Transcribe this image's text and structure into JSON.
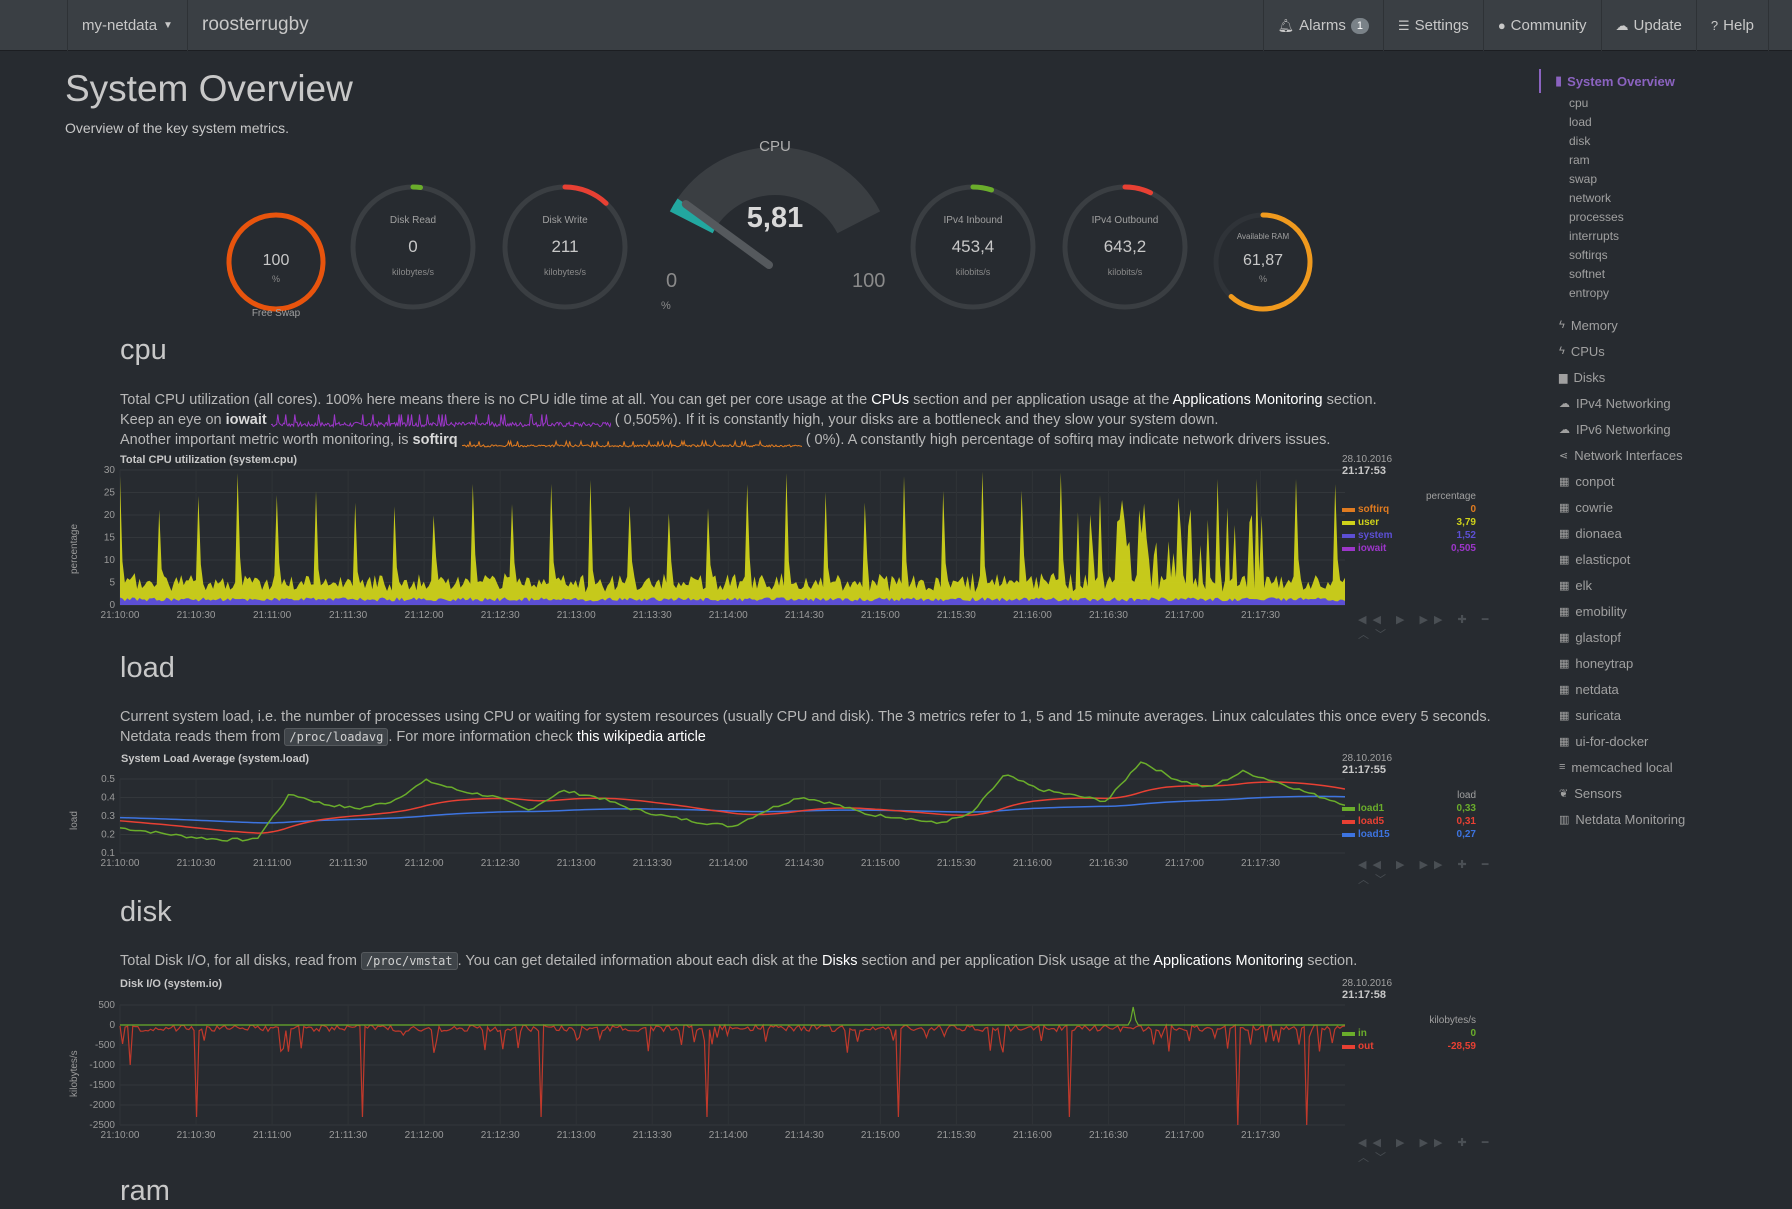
{
  "topbar": {
    "dashboard": "my-netdata",
    "hostname": "roosterrugby",
    "alarms_label": "Alarms",
    "alarms_count": "1",
    "settings_label": "Settings",
    "community_label": "Community",
    "update_label": "Update",
    "help_label": "Help"
  },
  "header": {
    "title": "System Overview",
    "subtitle": "Overview of the key system metrics."
  },
  "gauges": {
    "swap": {
      "label": "Free Swap",
      "value": "100",
      "unit": "%",
      "fraction": 1.0,
      "color": "#e8540d"
    },
    "disk_read": {
      "label": "Disk Read",
      "value": "0",
      "unit": "kilobytes/s",
      "fraction": 0.01,
      "color": "#6aad2b"
    },
    "disk_write": {
      "label": "Disk Write",
      "value": "211",
      "unit": "kilobytes/s",
      "fraction": 0.12,
      "color": "#e84033"
    },
    "cpu": {
      "label": "CPU",
      "value": "5,81",
      "min": "0",
      "max": "100",
      "unit": "%",
      "fraction": 0.0581,
      "color": "#22a8a0"
    },
    "ipv4_in": {
      "label": "IPv4 Inbound",
      "value": "453,4",
      "unit": "kilobits/s",
      "fraction": 0.05,
      "color": "#6aad2b"
    },
    "ipv4_out": {
      "label": "IPv4 Outbound",
      "value": "643,2",
      "unit": "kilobits/s",
      "fraction": 0.07,
      "color": "#e84033"
    },
    "ram": {
      "label": "Available RAM",
      "value": "61,87",
      "unit": "%",
      "fraction": 0.6187,
      "color": "#f09a1e"
    }
  },
  "sections": {
    "cpu": {
      "title": "cpu",
      "line1_a": "Total CPU utilization (all cores). 100% here means there is no CPU idle time at all. You can get per core usage at the ",
      "line1_link1": "CPUs",
      "line1_b": " section and per application usage at the ",
      "line1_link2": "Applications Monitoring",
      "line1_c": " section.",
      "line2_a": "Keep an eye on ",
      "line2_b": "iowait",
      "line2_c": "(     0,505%). If it is constantly high, your disks are a bottleneck and they slow your system down.",
      "line3_a": "Another important metric worth monitoring, is ",
      "line3_b": "softirq",
      "line3_c": "(          0%). A constantly high percentage of softirq may indicate network drivers issues.",
      "chart_title": "Total CPU utilization (system.cpu)",
      "ylabel": "percentage",
      "date": "28.10.2016",
      "time": "21:17:53",
      "units": "percentage"
    },
    "load": {
      "title": "load",
      "line1": "Current system load, i.e. the number of processes using CPU or waiting for system resources (usually CPU and disk). The 3 metrics refer to 1, 5 and 15 minute averages. Linux calculates this once every 5 seconds.",
      "line2_a": "Netdata reads them from ",
      "line2_code": "/proc/loadavg",
      "line2_b": ". For more information check ",
      "line2_link": "this wikipedia article",
      "chart_title": "System Load Average (system.load)",
      "ylabel": "load",
      "date": "28.10.2016",
      "time": "21:17:55",
      "units": "load"
    },
    "disk": {
      "title": "disk",
      "line1_a": "Total Disk I/O, for all disks, read from ",
      "line1_code": "/proc/vmstat",
      "line1_b": ". You can get detailed information about each disk at the ",
      "line1_link1": "Disks",
      "line1_c": " section and per application Disk usage at the ",
      "line1_link2": "Applications Monitoring",
      "line1_d": " section.",
      "chart_title": "Disk I/O (system.io)",
      "ylabel": "kilobytes/s",
      "date": "28.10.2016",
      "time": "21:17:58",
      "units": "kilobytes/s"
    },
    "ram": {
      "title": "ram"
    }
  },
  "chart_data": [
    {
      "type": "area",
      "title": "Total CPU utilization (system.cpu)",
      "ylabel": "percentage",
      "ylim": [
        0,
        30
      ],
      "yticks": [
        "0",
        "5",
        "10",
        "15",
        "20",
        "25",
        "30"
      ],
      "xticks": [
        "21:10:00",
        "21:10:30",
        "21:11:00",
        "21:11:30",
        "21:12:00",
        "21:12:30",
        "21:13:00",
        "21:13:30",
        "21:14:00",
        "21:14:30",
        "21:15:00",
        "21:15:30",
        "21:16:00",
        "21:16:30",
        "21:17:00",
        "21:17:30"
      ],
      "series": [
        {
          "name": "softirq",
          "value": "0",
          "color": "#e07b20"
        },
        {
          "name": "user",
          "value": "3,79",
          "color": "#cfd21a"
        },
        {
          "name": "system",
          "value": "1,52",
          "color": "#5c4fd4"
        },
        {
          "name": "iowait",
          "value": "0,505",
          "color": "#9c36c9"
        }
      ]
    },
    {
      "type": "line",
      "title": "System Load Average (system.load)",
      "ylabel": "load",
      "ylim": [
        0.1,
        0.5
      ],
      "yticks": [
        "0.1",
        "0.2",
        "0.3",
        "0.4",
        "0.5"
      ],
      "xticks": [
        "21:10:00",
        "21:10:30",
        "21:11:00",
        "21:11:30",
        "21:12:00",
        "21:12:30",
        "21:13:00",
        "21:13:30",
        "21:14:00",
        "21:14:30",
        "21:15:00",
        "21:15:30",
        "21:16:00",
        "21:16:30",
        "21:17:00",
        "21:17:30"
      ],
      "series": [
        {
          "name": "load1",
          "value": "0,33",
          "color": "#6aad2b"
        },
        {
          "name": "load5",
          "value": "0,31",
          "color": "#e84033"
        },
        {
          "name": "load15",
          "value": "0,27",
          "color": "#3d74e0"
        }
      ]
    },
    {
      "type": "line",
      "title": "Disk I/O (system.io)",
      "ylabel": "kilobytes/s",
      "ylim": [
        -2500,
        500
      ],
      "yticks": [
        "500",
        "0",
        "-500",
        "-1000",
        "-1500",
        "-2000",
        "-2500"
      ],
      "xticks": [
        "21:10:00",
        "21:10:30",
        "21:11:00",
        "21:11:30",
        "21:12:00",
        "21:12:30",
        "21:13:00",
        "21:13:30",
        "21:14:00",
        "21:14:30",
        "21:15:00",
        "21:15:30",
        "21:16:00",
        "21:16:30",
        "21:17:00",
        "21:17:30"
      ],
      "series": [
        {
          "name": "in",
          "value": "0",
          "color": "#6aad2b"
        },
        {
          "name": "out",
          "value": "-28,59",
          "color": "#e84033"
        }
      ]
    }
  ],
  "sidebar": {
    "active": "System Overview",
    "subitems": [
      "cpu",
      "load",
      "disk",
      "ram",
      "swap",
      "network",
      "processes",
      "interrupts",
      "softirqs",
      "softnet",
      "entropy"
    ],
    "items": [
      {
        "label": "Memory",
        "icon": "bolt-icon",
        "glyph": "ϟ"
      },
      {
        "label": "CPUs",
        "icon": "bolt-icon",
        "glyph": "ϟ"
      },
      {
        "label": "Disks",
        "icon": "folder-icon",
        "glyph": "▆"
      },
      {
        "label": "IPv4 Networking",
        "icon": "cloud-icon",
        "glyph": "☁"
      },
      {
        "label": "IPv6 Networking",
        "icon": "cloud-icon",
        "glyph": "☁"
      },
      {
        "label": "Network Interfaces",
        "icon": "share-icon",
        "glyph": "⋖"
      },
      {
        "label": "conpot",
        "icon": "grid-icon",
        "glyph": "▦"
      },
      {
        "label": "cowrie",
        "icon": "grid-icon",
        "glyph": "▦"
      },
      {
        "label": "dionaea",
        "icon": "grid-icon",
        "glyph": "▦"
      },
      {
        "label": "elasticpot",
        "icon": "grid-icon",
        "glyph": "▦"
      },
      {
        "label": "elk",
        "icon": "grid-icon",
        "glyph": "▦"
      },
      {
        "label": "emobility",
        "icon": "grid-icon",
        "glyph": "▦"
      },
      {
        "label": "glastopf",
        "icon": "grid-icon",
        "glyph": "▦"
      },
      {
        "label": "honeytrap",
        "icon": "grid-icon",
        "glyph": "▦"
      },
      {
        "label": "netdata",
        "icon": "grid-icon",
        "glyph": "▦"
      },
      {
        "label": "suricata",
        "icon": "grid-icon",
        "glyph": "▦"
      },
      {
        "label": "ui-for-docker",
        "icon": "grid-icon",
        "glyph": "▦"
      },
      {
        "label": "memcached local",
        "icon": "database-icon",
        "glyph": "≡"
      },
      {
        "label": "Sensors",
        "icon": "leaf-icon",
        "glyph": "❦"
      },
      {
        "label": "Netdata Monitoring",
        "icon": "bar-chart-icon",
        "glyph": "▥"
      }
    ]
  }
}
